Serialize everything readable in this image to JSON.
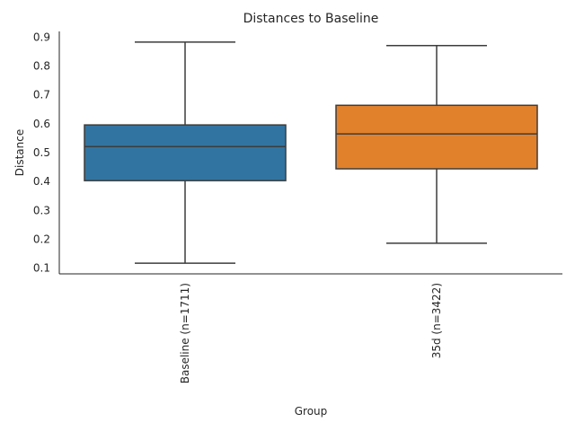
{
  "chart_data": {
    "type": "box",
    "title": "Distances to Baseline",
    "xlabel": "Group",
    "ylabel": "Distance",
    "ylim": [
      0.08,
      0.92
    ],
    "yticks": [
      0.1,
      0.2,
      0.3,
      0.4,
      0.5,
      0.6,
      0.7,
      0.8,
      0.9
    ],
    "grid": false,
    "categories": [
      "Baseline (n=1711)",
      "35d (n=3422)"
    ],
    "boxes": [
      {
        "category": "Baseline (n=1711)",
        "min": 0.117,
        "q1": 0.403,
        "median": 0.521,
        "q3": 0.596,
        "max": 0.883,
        "color": "#3274a1"
      },
      {
        "category": "35d (n=3422)",
        "min": 0.186,
        "q1": 0.444,
        "median": 0.565,
        "q3": 0.664,
        "max": 0.871,
        "color": "#e1812c"
      }
    ]
  }
}
